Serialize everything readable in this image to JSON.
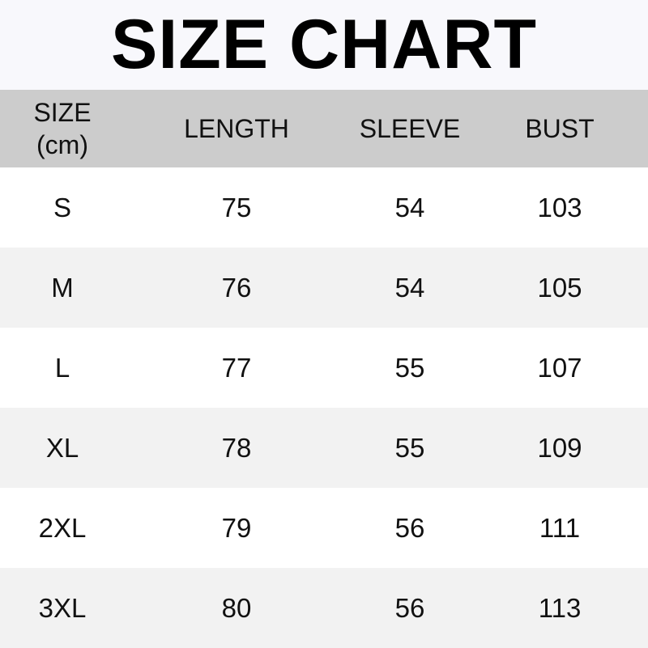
{
  "title": "SIZE CHART",
  "table": {
    "headers": [
      "SIZE",
      "LENGTH",
      "SLEEVE",
      "BUST"
    ],
    "size_unit": "(cm)",
    "rows": [
      [
        "S",
        "75",
        "54",
        "103"
      ],
      [
        "M",
        "76",
        "54",
        "105"
      ],
      [
        "L",
        "77",
        "55",
        "107"
      ],
      [
        "XL",
        "78",
        "55",
        "109"
      ],
      [
        "2XL",
        "79",
        "56",
        "111"
      ],
      [
        "3XL",
        "80",
        "56",
        "113"
      ]
    ]
  },
  "colors": {
    "header_bg": "#cccccc",
    "alt_row_bg": "#f2f2f2",
    "title_bg": "#f8f8fc"
  }
}
